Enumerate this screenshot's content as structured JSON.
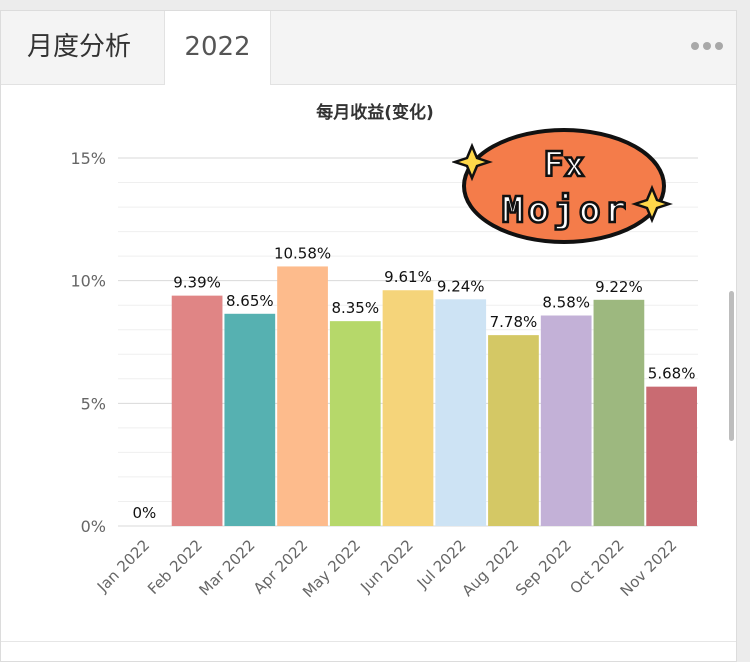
{
  "tabs": {
    "monthly_label": "月度分析",
    "year_label": "2022"
  },
  "chart_data": {
    "type": "bar",
    "title": "每月收益(变化)",
    "categories": [
      "Jan 2022",
      "Feb 2022",
      "Mar 2022",
      "Apr 2022",
      "May 2022",
      "Jun 2022",
      "Jul 2022",
      "Aug 2022",
      "Sep 2022",
      "Oct 2022",
      "Nov 2022"
    ],
    "values": [
      0,
      9.39,
      8.65,
      10.58,
      8.35,
      9.61,
      9.24,
      7.78,
      8.58,
      9.22,
      5.68
    ],
    "data_labels": [
      "0%",
      "9.39%",
      "8.65%",
      "10.58%",
      "8.35%",
      "9.61%",
      "9.24%",
      "7.78%",
      "8.58%",
      "9.22%",
      "5.68%"
    ],
    "colors": [
      "#e08585",
      "#e08585",
      "#56b1b1",
      "#fdbb8c",
      "#b6d86a",
      "#f5d47a",
      "#cde3f4",
      "#d4c865",
      "#c3b1d7",
      "#9db87f",
      "#c96b72"
    ],
    "ylim": [
      0,
      15
    ],
    "yticks": [
      0,
      5,
      10,
      15
    ],
    "ytick_labels": [
      "0%",
      "5%",
      "10%",
      "15%"
    ],
    "grid": true,
    "xlabel": "",
    "ylabel": ""
  },
  "watermark": {
    "line1": "Fx",
    "line2": "Mojor",
    "fill": "#f47c4a"
  }
}
